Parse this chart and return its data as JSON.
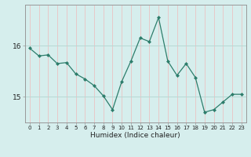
{
  "x": [
    0,
    1,
    2,
    3,
    4,
    5,
    6,
    7,
    8,
    9,
    10,
    11,
    12,
    13,
    14,
    15,
    16,
    17,
    18,
    19,
    20,
    21,
    22,
    23
  ],
  "y": [
    15.95,
    15.8,
    15.82,
    15.65,
    15.67,
    15.45,
    15.35,
    15.22,
    15.02,
    14.75,
    15.3,
    15.7,
    16.15,
    16.08,
    16.55,
    15.7,
    15.42,
    15.65,
    15.38,
    14.7,
    14.75,
    14.9,
    15.05,
    15.05
  ],
  "xlabel": "Humidex (Indice chaleur)",
  "line_color": "#2d7d6b",
  "marker_color": "#2d7d6b",
  "bg_color": "#d6eeed",
  "grid_color_v": "#e8c8c8",
  "grid_color_h": "#b8d8d4",
  "ylim": [
    14.5,
    16.8
  ],
  "yticks": [
    15,
    16
  ],
  "xticks": [
    0,
    1,
    2,
    3,
    4,
    5,
    6,
    7,
    8,
    9,
    10,
    11,
    12,
    13,
    14,
    15,
    16,
    17,
    18,
    19,
    20,
    21,
    22,
    23
  ]
}
